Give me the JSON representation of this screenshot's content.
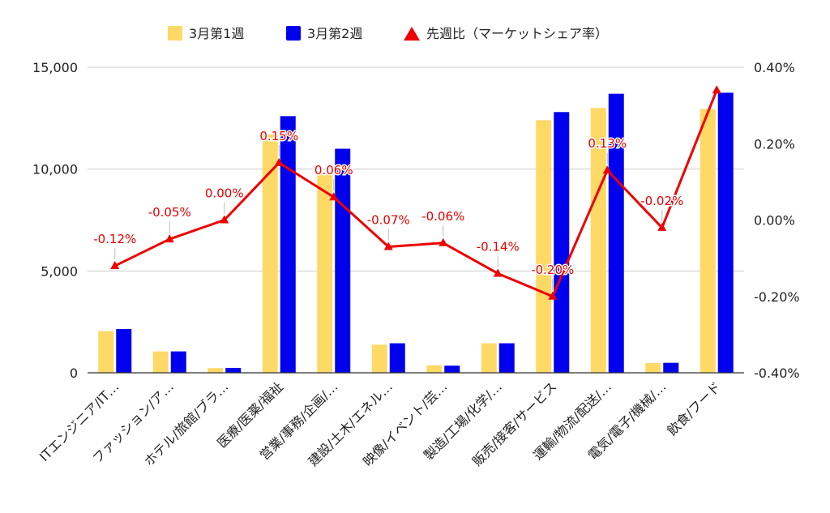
{
  "chart_data": {
    "type": "bar",
    "categories": [
      "ITエンジニア/IT…",
      "ファッション/ア…",
      "ホテル/旅館/ブラ…",
      "医療/医薬/福祉",
      "営業/事務/企画/…",
      "建設/土木/エネル…",
      "映像/イベント/芸…",
      "製造/工場/化学/…",
      "販売/接客/サービス",
      "運輸/物流/配送/…",
      "電気/電子/機械/…",
      "飲食/フード"
    ],
    "series": [
      {
        "name": "3月第1週",
        "type": "bar",
        "axis": "left",
        "color": "#FFD966",
        "values": [
          2050,
          1050,
          230,
          11700,
          9850,
          1380,
          370,
          1450,
          12400,
          13000,
          480,
          12950
        ]
      },
      {
        "name": "3月第2週",
        "type": "bar",
        "axis": "left",
        "color": "#0000EE",
        "values": [
          2150,
          1050,
          240,
          12600,
          11000,
          1450,
          350,
          1450,
          12800,
          13700,
          490,
          13750
        ]
      },
      {
        "name": "先週比（マーケットシェア率）",
        "type": "line",
        "axis": "right",
        "color": "#EE0000",
        "values": [
          -0.12,
          -0.05,
          0.0,
          0.15,
          0.06,
          -0.07,
          -0.06,
          -0.14,
          -0.2,
          0.13,
          -0.02,
          0.34
        ],
        "labels": [
          "-0.12%",
          "-0.05%",
          "0.00%",
          "0.15%",
          "0.06%",
          "-0.07%",
          "-0.06%",
          "-0.14%",
          "-0.20%",
          "0.13%",
          "-0.02%",
          ""
        ]
      }
    ],
    "y_left": {
      "ylim": [
        0,
        15000
      ],
      "ticks": [
        0,
        5000,
        10000,
        15000
      ],
      "tick_labels": [
        "0",
        "5,000",
        "10,000",
        "15,000"
      ]
    },
    "y_right": {
      "ylim": [
        -0.4,
        0.4
      ],
      "ticks": [
        -0.4,
        -0.2,
        0.0,
        0.2,
        0.4
      ],
      "tick_labels": [
        "-0.40%",
        "-0.20%",
        "0.00%",
        "0.20%",
        "0.40%"
      ]
    },
    "grid": true,
    "legend_position": "top-center"
  }
}
